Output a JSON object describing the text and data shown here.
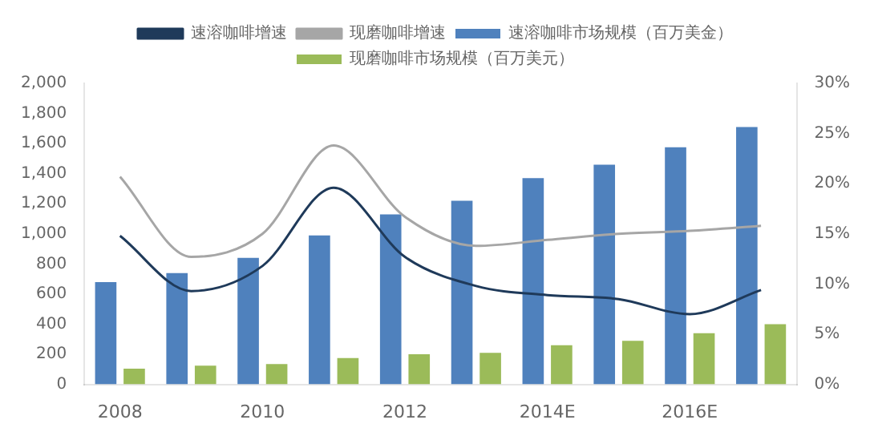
{
  "chart_data": {
    "type": "bar",
    "categories": [
      "2008",
      null,
      "2010",
      null,
      "2012",
      null,
      "2014E",
      null,
      "2016E",
      null
    ],
    "series": [
      {
        "name": "速溶咖啡市场规模（百万美金）",
        "color": "#4f81bd",
        "values": [
          680,
          740,
          840,
          990,
          1130,
          1220,
          1370,
          1460,
          1575,
          1710
        ]
      },
      {
        "name": "现磨咖啡市场规模（百万美元）",
        "color": "#9bbb59",
        "values": [
          105,
          125,
          135,
          175,
          200,
          210,
          260,
          290,
          340,
          400
        ]
      },
      {
        "name": "速溶咖啡增速",
        "type": "line",
        "axis": "y2",
        "color": "#1f3a5a",
        "values": [
          14.8,
          9.3,
          11.8,
          19.6,
          12.7,
          9.8,
          8.9,
          8.5,
          7,
          9.4
        ]
      },
      {
        "name": "现磨咖啡增速",
        "type": "line",
        "axis": "y2",
        "color": "#a6a6a6",
        "values": [
          20.7,
          12.7,
          15,
          23.8,
          16.7,
          13.8,
          14.4,
          15,
          15.3,
          15.8
        ]
      }
    ],
    "ylim": [
      0,
      2000
    ],
    "yticks": [
      {
        "value": 0,
        "label": "0"
      },
      {
        "value": 200,
        "label": "200"
      },
      {
        "value": 400,
        "label": "400"
      },
      {
        "value": 600,
        "label": "600"
      },
      {
        "value": 800,
        "label": "800"
      },
      {
        "value": 1000,
        "label": "1,000"
      },
      {
        "value": 1200,
        "label": "1,200"
      },
      {
        "value": 1400,
        "label": "1,400"
      },
      {
        "value": 1600,
        "label": "1,600"
      },
      {
        "value": 1800,
        "label": "1,800"
      },
      {
        "value": 2000,
        "label": "2,000"
      }
    ],
    "y2lim": [
      0,
      30
    ],
    "y2ticks": [
      {
        "value": 0,
        "label": "0%"
      },
      {
        "value": 5,
        "label": "5%"
      },
      {
        "value": 10,
        "label": "10%"
      },
      {
        "value": 15,
        "label": "15%"
      },
      {
        "value": 20,
        "label": "20%"
      },
      {
        "value": 25,
        "label": "25%"
      },
      {
        "value": 30,
        "label": "30%"
      }
    ],
    "grid": false,
    "legend": "top",
    "marker": "none",
    "line_style": "solid"
  }
}
